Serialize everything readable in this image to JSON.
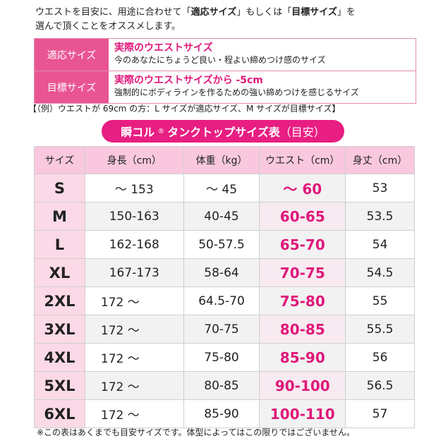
{
  "intro": {
    "line1_pre": "ウエストを目安に、用途に合わせて「",
    "line1_bold1": "適応サイズ",
    "line1_mid": "」もしくは「",
    "line1_bold2": "目標サイズ",
    "line1_post": "」を",
    "line2": "選んで頂くことをオススメします。"
  },
  "definitions": [
    {
      "label": "適応サイズ",
      "title": "実際のウエストサイズ",
      "desc": "今のあなたにちょうど良い・程よい締めつけ感のサイズ"
    },
    {
      "label": "目標サイズ",
      "title": "実際のウエストサイズから -5cm",
      "desc": "強制的にボディラインを作るための強い締めつけを感じるサイズ"
    }
  ],
  "example": "【（例）ウエストが 69cm の方：L サイズが適応サイズ、M サイズが目標サイズ】",
  "banner": {
    "main": "瞬コル",
    "reg": "®",
    "rest": " タンクトップサイズ表",
    "sub": "（目安）"
  },
  "table": {
    "headers": [
      "サイズ",
      "身長（cm）",
      "体重（kg）",
      "ウエスト（cm）",
      "身丈（cm）"
    ],
    "rows": [
      [
        "S",
        "〜 153",
        "〜 45",
        "〜 60",
        "53"
      ],
      [
        "M",
        "150-163",
        "40-45",
        "60-65",
        "53.5"
      ],
      [
        "L",
        "162-168",
        "50-57.5",
        "65-70",
        "54"
      ],
      [
        "XL",
        "167-173",
        "58-64",
        "70-75",
        "54.5"
      ],
      [
        "2XL",
        "172 〜",
        "64.5-70",
        "75-80",
        "55"
      ],
      [
        "3XL",
        "172 〜",
        "70-75",
        "80-85",
        "55.5"
      ],
      [
        "4XL",
        "172 〜",
        "75-80",
        "85-90",
        "56"
      ],
      [
        "5XL",
        "172 〜",
        "80-85",
        "90-100",
        "56.5"
      ],
      [
        "6XL",
        "172 〜",
        "85-90",
        "100-110",
        "57"
      ]
    ]
  },
  "footnote": "※この表はあくまでも目安サイズです。体型によってはこの限りではございません。",
  "colors": {
    "accent": "#e81e82",
    "header_bg": "#f9c8de",
    "label_bg": "#e95593"
  }
}
